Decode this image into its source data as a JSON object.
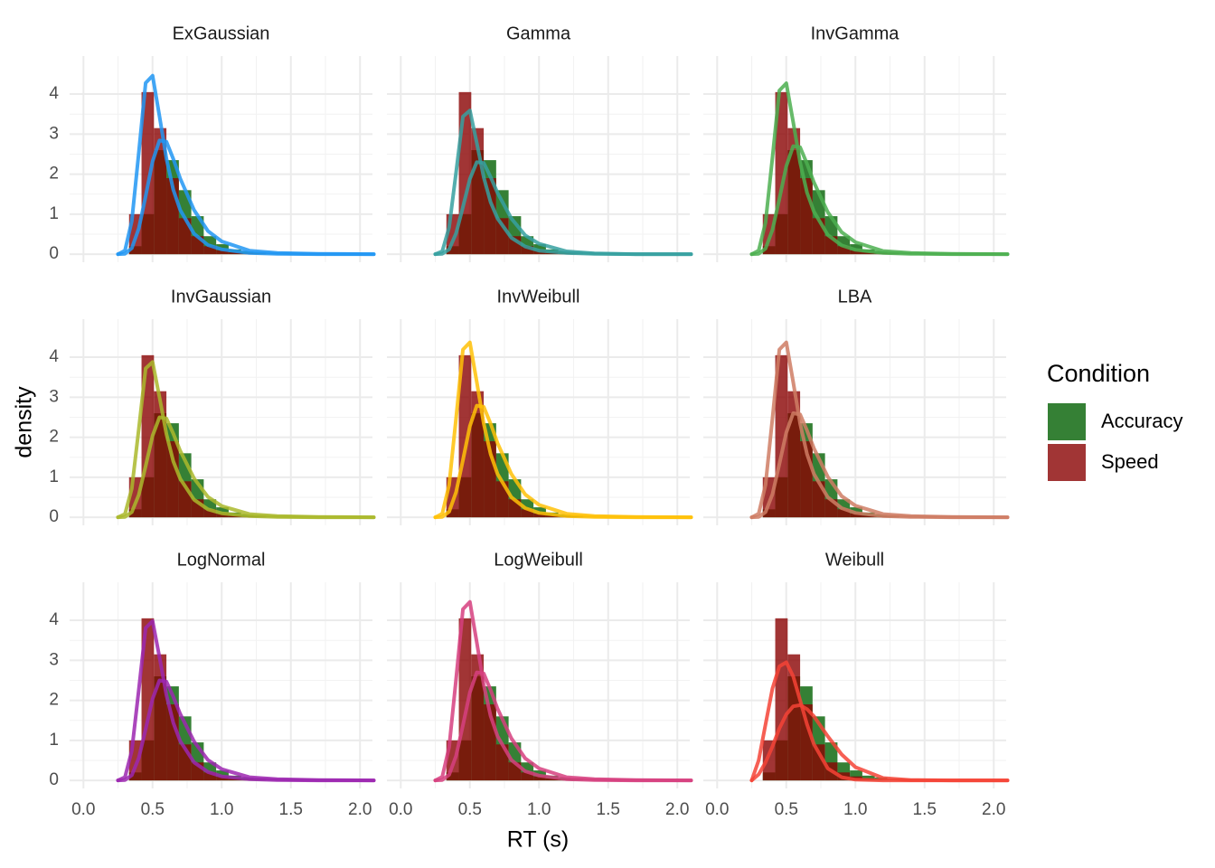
{
  "chart_data": {
    "type": "facet_histogram_density",
    "xlabel": "RT (s)",
    "ylabel": "density",
    "legend_title": "Condition",
    "xlim": [
      -0.1,
      2.09
    ],
    "ylim": [
      -0.2,
      4.95
    ],
    "xticks": [
      {
        "value": 0,
        "label": "0.0"
      },
      0.5,
      {
        "value": 1,
        "label": "1.0"
      },
      1.5,
      {
        "value": 2,
        "label": "2.0"
      }
    ],
    "yticks": [
      0,
      1,
      2,
      3,
      4
    ],
    "grid": true,
    "minor_grid": true,
    "bins": [
      0.33,
      0.42,
      0.51,
      0.6,
      0.69,
      0.78,
      0.87,
      0.96,
      1.05,
      1.14,
      1.23,
      1.32,
      1.41,
      1.5,
      1.59,
      1.68
    ],
    "series": [
      {
        "name": "Accuracy",
        "color": "#358035",
        "alpha": 1,
        "values": [
          0.2,
          1.0,
          2.6,
          2.35,
          1.6,
          0.95,
          0.45,
          0.25,
          0.12,
          0.07,
          0.04,
          0.02,
          0.01,
          0.01,
          0
        ]
      },
      {
        "name": "Speed",
        "color": "#8a0202",
        "alpha": 0.8,
        "values": [
          1.0,
          4.05,
          3.15,
          1.9,
          0.9,
          0.45,
          0.2,
          0.1,
          0.05,
          0.02,
          0.01,
          0,
          0,
          0,
          0
        ]
      }
    ],
    "x": [
      0.25,
      0.3,
      0.35,
      0.4,
      0.45,
      0.5,
      0.55,
      0.6,
      0.65,
      0.7,
      0.8,
      0.9,
      1.0,
      1.2,
      1.4,
      1.7,
      2.1
    ],
    "facets": [
      {
        "title": "ExGaussian",
        "color": "#2196f3",
        "curves": [
          [
            0,
            0.01,
            0.15,
            0.64,
            1.45,
            2.32,
            2.84,
            2.81,
            2.38,
            1.89,
            1.1,
            0.58,
            0.32,
            0.09,
            0.03,
            0.01,
            0
          ],
          [
            0,
            0.09,
            0.83,
            2.53,
            4.28,
            4.46,
            3.45,
            2.39,
            1.61,
            1.1,
            0.51,
            0.23,
            0.12,
            0.03,
            0.01,
            0,
            0
          ]
        ]
      },
      {
        "title": "Gamma",
        "color": "#36a0a0",
        "curves": [
          [
            0,
            0.01,
            0.12,
            0.52,
            1.18,
            1.88,
            2.3,
            2.28,
            1.93,
            1.53,
            0.89,
            0.47,
            0.26,
            0.07,
            0.02,
            0,
            0
          ],
          [
            0,
            0.07,
            0.67,
            2.04,
            3.44,
            3.59,
            2.78,
            1.92,
            1.3,
            0.89,
            0.41,
            0.19,
            0.09,
            0.03,
            0.01,
            0,
            0
          ]
        ]
      },
      {
        "title": "InvGamma",
        "color": "#4caf50",
        "curves": [
          [
            0,
            0.01,
            0.14,
            0.61,
            1.38,
            2.2,
            2.7,
            2.67,
            2.26,
            1.79,
            1.05,
            0.55,
            0.3,
            0.08,
            0.03,
            0.01,
            0
          ],
          [
            0,
            0.09,
            0.79,
            2.42,
            4.09,
            4.27,
            3.3,
            2.29,
            1.54,
            1.06,
            0.48,
            0.22,
            0.11,
            0.03,
            0.01,
            0,
            0
          ]
        ]
      },
      {
        "title": "InvGaussian",
        "color": "#aab82c",
        "curves": [
          [
            0,
            0.01,
            0.13,
            0.56,
            1.28,
            2.04,
            2.5,
            2.47,
            2.09,
            1.66,
            0.97,
            0.51,
            0.28,
            0.08,
            0.03,
            0.01,
            0
          ],
          [
            0,
            0.08,
            0.72,
            2.2,
            3.72,
            3.88,
            3.0,
            2.08,
            1.4,
            0.96,
            0.44,
            0.2,
            0.1,
            0.03,
            0.01,
            0,
            0
          ]
        ]
      },
      {
        "title": "InvWeibull",
        "color": "#ffc107",
        "curves": [
          [
            0,
            0.01,
            0.14,
            0.63,
            1.43,
            2.28,
            2.79,
            2.76,
            2.34,
            1.85,
            1.08,
            0.57,
            0.31,
            0.09,
            0.03,
            0.01,
            0
          ],
          [
            0,
            0.09,
            0.81,
            2.48,
            4.19,
            4.37,
            3.38,
            2.34,
            1.58,
            1.08,
            0.5,
            0.23,
            0.11,
            0.03,
            0.01,
            0,
            0
          ]
        ]
      },
      {
        "title": "LBA",
        "color": "#cf7c64",
        "curves": [
          [
            0,
            0.01,
            0.13,
            0.58,
            1.33,
            2.12,
            2.6,
            2.57,
            2.17,
            1.72,
            1.01,
            0.53,
            0.29,
            0.08,
            0.03,
            0.01,
            0
          ],
          [
            0,
            0.09,
            0.81,
            2.48,
            4.19,
            4.37,
            3.38,
            2.34,
            1.58,
            1.08,
            0.5,
            0.23,
            0.11,
            0.03,
            0.01,
            0,
            0
          ]
        ]
      },
      {
        "title": "LogNormal",
        "color": "#9c27b0",
        "curves": [
          [
            0,
            0.01,
            0.13,
            0.56,
            1.28,
            2.04,
            2.5,
            2.47,
            2.09,
            1.66,
            0.97,
            0.51,
            0.28,
            0.08,
            0.03,
            0.01,
            0
          ],
          [
            0,
            0.08,
            0.74,
            2.26,
            3.81,
            3.98,
            3.08,
            2.13,
            1.44,
            0.98,
            0.45,
            0.21,
            0.1,
            0.03,
            0.01,
            0,
            0
          ]
        ]
      },
      {
        "title": "LogWeibull",
        "color": "#d6407f",
        "curves": [
          [
            0,
            0.01,
            0.14,
            0.61,
            1.38,
            2.2,
            2.7,
            2.67,
            2.26,
            1.79,
            1.05,
            0.55,
            0.3,
            0.08,
            0.03,
            0.01,
            0
          ],
          [
            0,
            0.09,
            0.83,
            2.53,
            4.28,
            4.46,
            3.45,
            2.39,
            1.61,
            1.1,
            0.51,
            0.23,
            0.12,
            0.03,
            0.01,
            0,
            0
          ]
        ]
      },
      {
        "title": "Weibull",
        "color": "#f44336",
        "curves": [
          [
            0,
            0.15,
            0.45,
            0.85,
            1.3,
            1.65,
            1.85,
            1.88,
            1.78,
            1.6,
            1.1,
            0.65,
            0.33,
            0.06,
            0.01,
            0,
            0
          ],
          [
            0,
            0.5,
            1.4,
            2.3,
            2.85,
            2.95,
            2.6,
            2.0,
            1.4,
            0.9,
            0.3,
            0.08,
            0.02,
            0,
            0,
            0,
            0
          ]
        ]
      }
    ]
  }
}
